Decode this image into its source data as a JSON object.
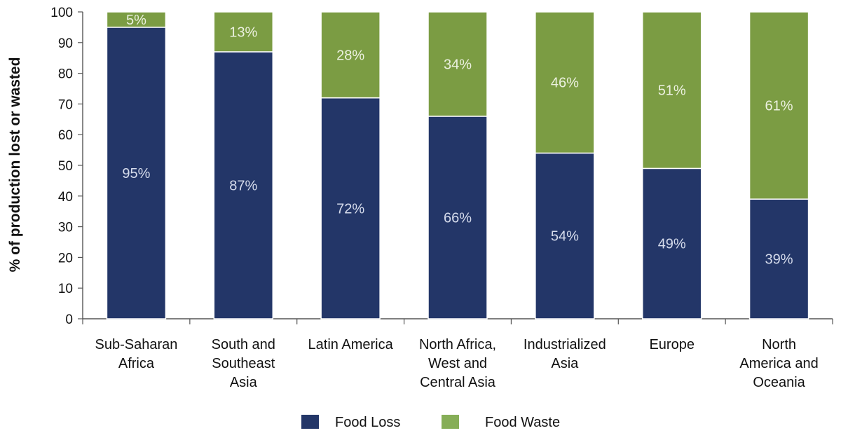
{
  "chart_data": {
    "type": "bar",
    "stacked": true,
    "title": "",
    "xlabel": "",
    "ylabel": "% of production lost or wasted",
    "ylim": [
      0,
      100
    ],
    "yticks": [
      0,
      10,
      20,
      30,
      40,
      50,
      60,
      70,
      80,
      90,
      100
    ],
    "grid": false,
    "legend_position": "bottom",
    "categories": [
      [
        "Sub-Saharan",
        "Africa"
      ],
      [
        "South and",
        "Southeast",
        "Asia"
      ],
      [
        "Latin America"
      ],
      [
        "North Africa,",
        "West and",
        "Central Asia"
      ],
      [
        "Industrialized",
        "Asia"
      ],
      [
        "Europe"
      ],
      [
        "North",
        "America and",
        "Oceania"
      ]
    ],
    "series": [
      {
        "name": "Food Loss",
        "color": "#233668",
        "values": [
          95,
          87,
          72,
          66,
          54,
          49,
          39
        ],
        "labels": [
          "95%",
          "87%",
          "72%",
          "66%",
          "54%",
          "49%",
          "39%"
        ]
      },
      {
        "name": "Food Waste",
        "color": "#7b9c43",
        "values": [
          5,
          13,
          28,
          34,
          46,
          51,
          61
        ],
        "labels": [
          "5%",
          "13%",
          "28%",
          "34%",
          "46%",
          "51%",
          "61%"
        ]
      }
    ],
    "legend_colors": {
      "Food Loss": "#233668",
      "Food Waste": "#86ae57"
    }
  }
}
